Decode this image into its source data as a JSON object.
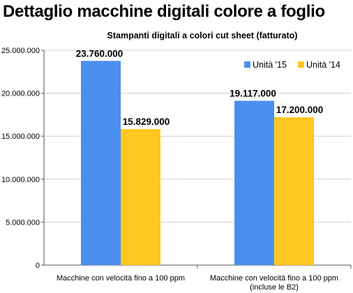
{
  "page": {
    "heading": "Dettaglio macchine digitali colore a foglio"
  },
  "chart_data": {
    "type": "bar",
    "title": "Stampanti digitali a colori cut sheet (fatturato)",
    "categories": [
      [
        "Macchine con velocità fino a 100 ppm"
      ],
      [
        "Macchine con velocità fino a 100 ppm",
        "(incluse le B2)"
      ]
    ],
    "series": [
      {
        "name": "Unità '15",
        "color": "#4a8ff0",
        "values": [
          23760000,
          19117000
        ],
        "labels": [
          "23.760.000",
          "19.117.000"
        ]
      },
      {
        "name": "Unità '14",
        "color": "#ffc71f",
        "values": [
          15829000,
          17200000
        ],
        "labels": [
          "15.829.000",
          "17.200.000"
        ]
      }
    ],
    "ylim": [
      0,
      25000000
    ],
    "yticks": [
      {
        "value": 0,
        "label": "0"
      },
      {
        "value": 5000000,
        "label": "5.000.000"
      },
      {
        "value": 10000000,
        "label": "10.000.000"
      },
      {
        "value": 15000000,
        "label": "15.000.000"
      },
      {
        "value": 20000000,
        "label": "20.000.000"
      },
      {
        "value": 25000000,
        "label": "25.000.000"
      }
    ],
    "grid": true,
    "legend_position": "top-right",
    "xlabel": "",
    "ylabel": ""
  }
}
